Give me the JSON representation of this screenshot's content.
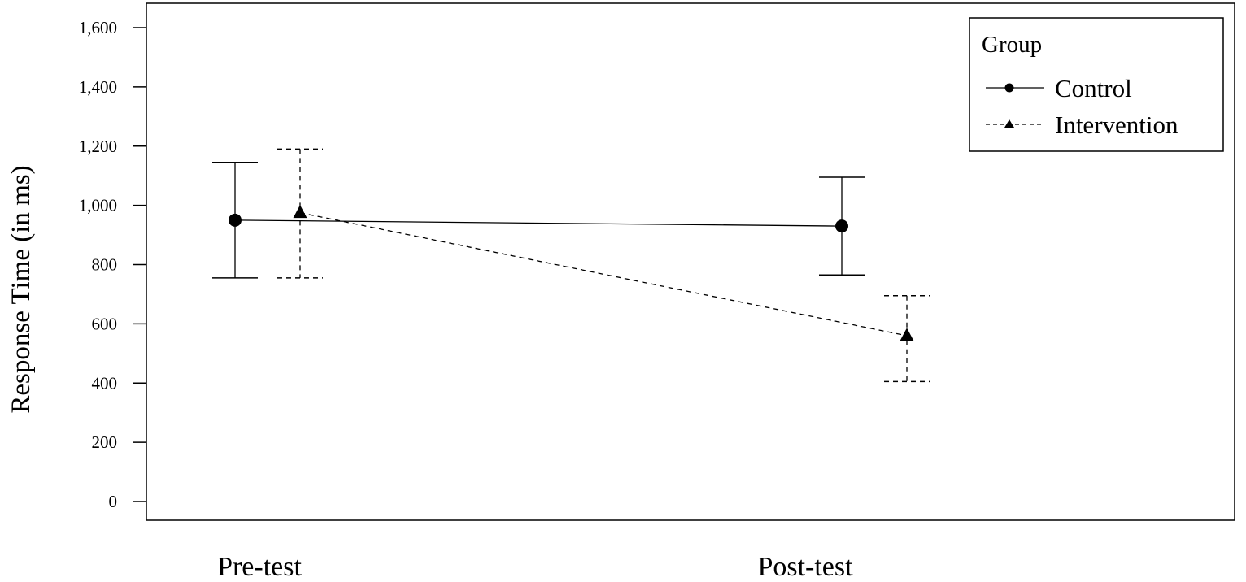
{
  "chart_data": {
    "type": "line",
    "categories": [
      "Pre-test",
      "Post-test"
    ],
    "ylabel": "Response Time (in ms)",
    "xlabel": "",
    "ylim": [
      0,
      1600
    ],
    "yticks": [
      0,
      200,
      400,
      600,
      800,
      1000,
      1200,
      1400,
      1600
    ],
    "ytick_labels": [
      "0",
      "200",
      "400",
      "600",
      "800",
      "1,000",
      "1,200",
      "1,400",
      "1,600"
    ],
    "grid": false,
    "legend": {
      "title": "Group",
      "placement": "top-right"
    },
    "series": [
      {
        "name": "Control",
        "marker": "circle",
        "line_style": "solid",
        "values": [
          950,
          930
        ],
        "error_low": [
          755,
          765
        ],
        "error_high": [
          1145,
          1095
        ]
      },
      {
        "name": "Intervention",
        "marker": "triangle",
        "line_style": "dashed",
        "values": [
          975,
          560
        ],
        "error_low": [
          755,
          405
        ],
        "error_high": [
          1190,
          695
        ]
      }
    ]
  }
}
